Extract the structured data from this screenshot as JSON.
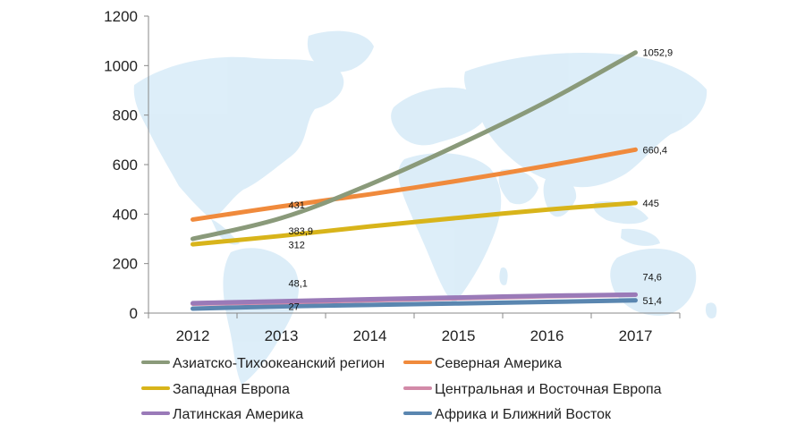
{
  "chart_data": {
    "type": "line",
    "x": [
      "2012",
      "2013",
      "2014",
      "2015",
      "2016",
      "2017"
    ],
    "ylim": [
      0,
      1200
    ],
    "yticks": [
      "0",
      "200",
      "400",
      "600",
      "800",
      "1000",
      "1200"
    ],
    "grid": false,
    "legend_position": "bottom",
    "background": "world-map",
    "series": [
      {
        "name": "Азиатско-Тихоокеанский регион",
        "color": "#8a9a7a",
        "values": [
          300,
          383.9,
          520,
          680,
          855,
          1052.9
        ],
        "data_labels": [
          "",
          "383,9",
          "",
          "",
          "",
          "1052,9"
        ]
      },
      {
        "name": "Северная Америка",
        "color": "#f08a3c",
        "values": [
          378,
          431,
          480,
          535,
          595,
          660.4
        ],
        "data_labels": [
          "",
          "431",
          "",
          "",
          "",
          "660,4"
        ]
      },
      {
        "name": "Западная Европа",
        "color": "#d8b41a",
        "values": [
          278,
          312,
          350,
          385,
          418,
          445
        ],
        "data_labels": [
          "",
          "312",
          "",
          "",
          "",
          "445"
        ]
      },
      {
        "name": "Центральная и Восточная Европа",
        "color": "#d28aa8",
        "values": [
          38,
          44,
          52,
          60,
          68,
          74
        ],
        "data_labels": [
          "",
          "",
          "",
          "",
          "",
          ""
        ]
      },
      {
        "name": "Латинская Америка",
        "color": "#9a7ab8",
        "values": [
          40,
          48.1,
          56,
          63,
          70,
          74.6
        ],
        "data_labels": [
          "",
          "48,1",
          "",
          "",
          "",
          "74,6"
        ]
      },
      {
        "name": "Африка и Ближний Восток",
        "color": "#5a86b0",
        "values": [
          18,
          27,
          33,
          39,
          45,
          51.4
        ],
        "data_labels": [
          "",
          "27",
          "",
          "",
          "",
          "51,4"
        ]
      }
    ]
  }
}
